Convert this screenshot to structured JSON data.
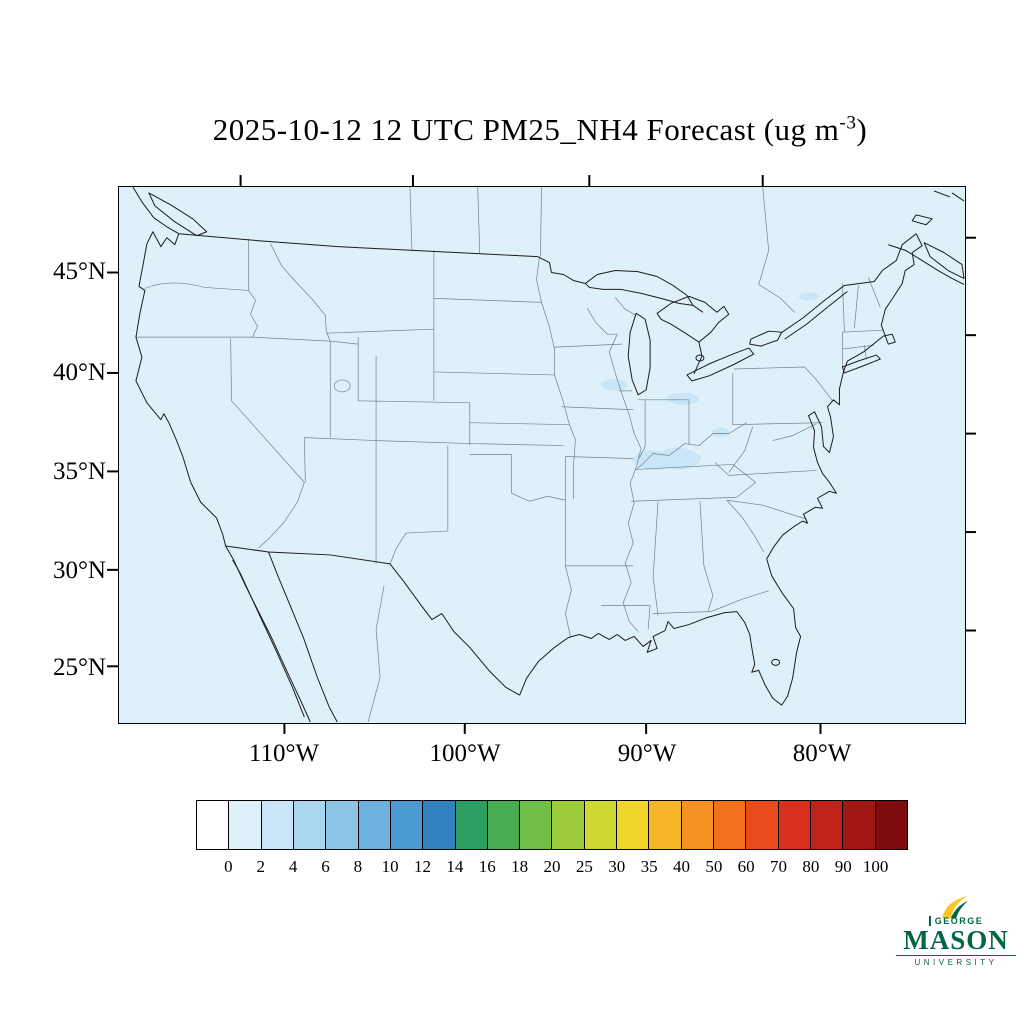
{
  "title": {
    "prefix": "2025-10-12 12 UTC PM25_NH4 Forecast (ug m",
    "exponent": "-3",
    "suffix": ")"
  },
  "axes": {
    "lat_labels": [
      "45°N",
      "40°N",
      "35°N",
      "30°N",
      "25°N"
    ],
    "lon_labels": [
      "110°W",
      "100°W",
      "90°W",
      "80°W"
    ]
  },
  "colorbar": {
    "tick_labels": [
      "0",
      "2",
      "4",
      "6",
      "8",
      "10",
      "12",
      "14",
      "16",
      "18",
      "20",
      "25",
      "30",
      "35",
      "40",
      "50",
      "60",
      "70",
      "80",
      "90",
      "100"
    ],
    "colors": [
      "#ffffff",
      "#def0f9",
      "#c9e5f6",
      "#abd6ef",
      "#8cc4e8",
      "#6cb0de",
      "#4c9ad2",
      "#3282c0",
      "#2f9e62",
      "#47ad50",
      "#6fbe45",
      "#9ccb3c",
      "#cdd833",
      "#f2d52b",
      "#f7b52a",
      "#f69223",
      "#f3701f",
      "#ea4b1c",
      "#d8301b",
      "#c02318",
      "#a01713",
      "#7e0c0e"
    ]
  },
  "logo": {
    "george": "GEORGE",
    "mason": "MASON",
    "university": "UNIVERSITY",
    "green": "#00683f",
    "gold": "#ffc726"
  },
  "chart_data": {
    "type": "heatmap",
    "title": "2025-10-12 12 UTC PM25_NH4 Forecast (ug m-3)",
    "variable": "PM25_NH4",
    "units": "ug m-3",
    "forecast_time": "2025-10-12 12 UTC",
    "region": "Continental United States with parts of Canada and Mexico",
    "x": {
      "label": "Longitude",
      "ticks": [
        "110°W",
        "100°W",
        "90°W",
        "80°W"
      ]
    },
    "y": {
      "label": "Latitude",
      "ticks": [
        "45°N",
        "40°N",
        "35°N",
        "30°N",
        "25°N"
      ]
    },
    "levels": [
      0,
      2,
      4,
      6,
      8,
      10,
      12,
      14,
      16,
      18,
      20,
      25,
      30,
      35,
      40,
      50,
      60,
      70,
      80,
      90,
      100
    ],
    "colors": [
      "#ffffff",
      "#def0f9",
      "#c9e5f6",
      "#abd6ef",
      "#8cc4e8",
      "#6cb0de",
      "#4c9ad2",
      "#3282c0",
      "#2f9e62",
      "#47ad50",
      "#6fbe45",
      "#9ccb3c",
      "#cdd833",
      "#f2d52b",
      "#f7b52a",
      "#f69223",
      "#f3701f",
      "#ea4b1c",
      "#d8301b",
      "#c02318",
      "#a01713",
      "#7e0c0e"
    ],
    "legend_position": "bottom",
    "field_summary": [
      {
        "area": "most of map domain",
        "value_range": "0-2"
      },
      {
        "area": "Ohio Valley (southern Indiana / Kentucky)",
        "value_range": "2-4"
      },
      {
        "area": "central Illinois",
        "value_range": "2-4"
      },
      {
        "area": "northern Ohio near Lake Erie",
        "value_range": "2-4"
      },
      {
        "area": "near Lake Ontario",
        "value_range": "2-4"
      }
    ]
  }
}
